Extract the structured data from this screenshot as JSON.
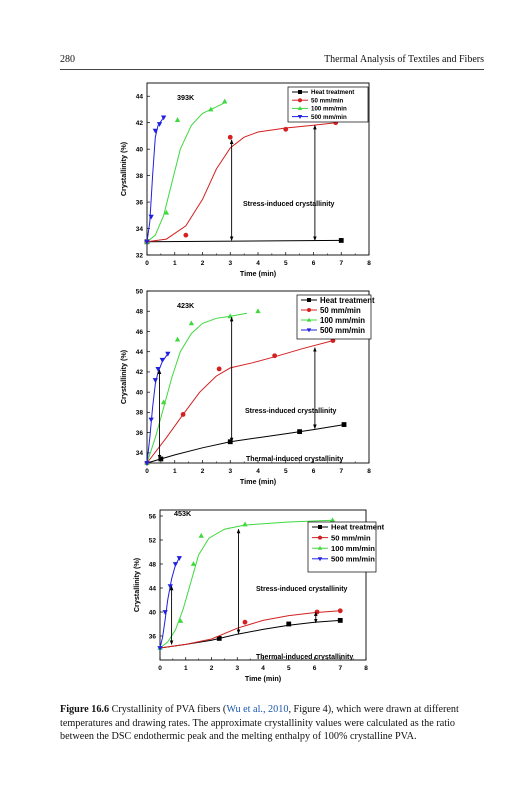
{
  "page": {
    "number": "280",
    "running_title": "Thermal Analysis of Textiles and Fibers"
  },
  "caption": {
    "label": "Figure 16.6",
    "before": "Crystallinity of PVA fibers (",
    "citation": "Wu et al., 2010",
    "after": ", Figure 4), which were drawn at different temperatures and drawing rates. The approximate crystallinity values were calculated as the ratio between the DSC endothermic peak and the melting enthalpy of 100% crystalline PVA."
  },
  "colors": {
    "heat_treatment": "#000000",
    "rate_50": "#d42020",
    "rate_100": "#3fd83f",
    "rate_500": "#1f1fe0"
  },
  "chart_data": [
    {
      "type": "line",
      "title": "393K",
      "xlabel": "Time (min)",
      "ylabel": "Crystallinity (%)",
      "xlim": [
        0,
        8
      ],
      "ylim": [
        32,
        45
      ],
      "xticks": [
        0,
        1,
        2,
        3,
        4,
        5,
        6,
        7,
        8
      ],
      "yticks": [
        32,
        34,
        36,
        38,
        40,
        42,
        44
      ],
      "legend_position": "top-right",
      "annotations": [
        "Stress-induced crystallinity"
      ],
      "series": [
        {
          "name": "Heat treatment",
          "marker": "square",
          "color": "#000000",
          "points": [
            [
              0,
              33
            ],
            [
              7,
              33.1
            ]
          ],
          "curve": [
            [
              0,
              33
            ],
            [
              7,
              33.1
            ]
          ]
        },
        {
          "name": "50 mm/min",
          "marker": "circle",
          "color": "#d42020",
          "points": [
            [
              0,
              33
            ],
            [
              1.4,
              33.5
            ],
            [
              3,
              40.9
            ],
            [
              5,
              41.5
            ],
            [
              6.8,
              42
            ]
          ],
          "curve": [
            [
              0,
              33
            ],
            [
              0.7,
              33.2
            ],
            [
              1.4,
              34.2
            ],
            [
              2,
              36.2
            ],
            [
              2.5,
              38.5
            ],
            [
              3,
              40.1
            ],
            [
              3.5,
              40.9
            ],
            [
              4,
              41.3
            ],
            [
              5,
              41.6
            ],
            [
              6,
              41.8
            ],
            [
              6.8,
              42
            ]
          ]
        },
        {
          "name": "100 mm/min",
          "marker": "triangle-up",
          "color": "#3fd83f",
          "points": [
            [
              0,
              33
            ],
            [
              0.7,
              35.2
            ],
            [
              1.1,
              42.2
            ],
            [
              2.3,
              43
            ],
            [
              2.8,
              43.6
            ]
          ],
          "curve": [
            [
              0,
              33
            ],
            [
              0.3,
              33.5
            ],
            [
              0.6,
              35
            ],
            [
              0.9,
              37.5
            ],
            [
              1.2,
              40
            ],
            [
              1.6,
              41.8
            ],
            [
              2,
              42.7
            ],
            [
              2.5,
              43.2
            ],
            [
              2.8,
              43.5
            ]
          ]
        },
        {
          "name": "500 mm/min",
          "marker": "triangle-down",
          "color": "#1f1fe0",
          "points": [
            [
              0,
              33
            ],
            [
              0.15,
              34.9
            ],
            [
              0.3,
              41.4
            ],
            [
              0.45,
              41.9
            ],
            [
              0.6,
              42.4
            ]
          ],
          "curve": [
            [
              0,
              33
            ],
            [
              0.1,
              34.5
            ],
            [
              0.2,
              38
            ],
            [
              0.3,
              40.9
            ],
            [
              0.4,
              41.8
            ],
            [
              0.5,
              42.1
            ],
            [
              0.6,
              42.4
            ]
          ]
        }
      ],
      "arrows": [
        {
          "x": 3.05,
          "y_from": 33.1,
          "y_to": 40.7
        },
        {
          "x": 6.05,
          "y_from": 33.1,
          "y_to": 41.8
        }
      ]
    },
    {
      "type": "line",
      "title": "423K",
      "xlabel": "Time (min)",
      "ylabel": "Crystallinity (%)",
      "xlim": [
        0,
        8
      ],
      "ylim": [
        33,
        50
      ],
      "xticks": [
        0,
        1,
        2,
        3,
        4,
        5,
        6,
        7,
        8
      ],
      "yticks": [
        34,
        36,
        38,
        40,
        42,
        44,
        46,
        48,
        50
      ],
      "legend_position": "top-right",
      "annotations": [
        "Stress-induced crystallinity",
        "Thermal-induced crystallinity"
      ],
      "series": [
        {
          "name": "Heat treatment",
          "marker": "square",
          "color": "#000000",
          "points": [
            [
              0.5,
              33.4
            ],
            [
              3,
              35.1
            ],
            [
              5.5,
              36.1
            ],
            [
              7.1,
              36.8
            ]
          ],
          "curve": [
            [
              0,
              33
            ],
            [
              1,
              33.8
            ],
            [
              2,
              34.5
            ],
            [
              3,
              35.1
            ],
            [
              4,
              35.5
            ],
            [
              5,
              35.9
            ],
            [
              6,
              36.3
            ],
            [
              7.1,
              36.8
            ]
          ]
        },
        {
          "name": "50 mm/min",
          "marker": "circle",
          "color": "#d42020",
          "points": [
            [
              0,
              33
            ],
            [
              1.3,
              37.8
            ],
            [
              2.6,
              42.3
            ],
            [
              4.6,
              43.6
            ],
            [
              6.7,
              45.1
            ]
          ],
          "curve": [
            [
              0,
              33
            ],
            [
              0.7,
              35.5
            ],
            [
              1.3,
              37.8
            ],
            [
              1.9,
              40
            ],
            [
              2.5,
              41.6
            ],
            [
              3,
              42.4
            ],
            [
              3.8,
              42.9
            ],
            [
              4.6,
              43.5
            ],
            [
              5.6,
              44.3
            ],
            [
              6.7,
              45.1
            ]
          ]
        },
        {
          "name": "100 mm/min",
          "marker": "triangle-up",
          "color": "#3fd83f",
          "points": [
            [
              0,
              33
            ],
            [
              0.6,
              39
            ],
            [
              1.1,
              45.2
            ],
            [
              1.6,
              46.8
            ],
            [
              3,
              47.5
            ],
            [
              4,
              48
            ]
          ],
          "curve": [
            [
              0,
              33
            ],
            [
              0.3,
              35.5
            ],
            [
              0.6,
              38.5
            ],
            [
              0.9,
              41.5
            ],
            [
              1.2,
              44
            ],
            [
              1.6,
              45.8
            ],
            [
              2,
              46.8
            ],
            [
              2.5,
              47.3
            ],
            [
              3,
              47.5
            ],
            [
              3.6,
              47.8
            ]
          ]
        },
        {
          "name": "500 mm/min",
          "marker": "triangle-down",
          "color": "#1f1fe0",
          "points": [
            [
              0,
              33
            ],
            [
              0.15,
              37.3
            ],
            [
              0.3,
              41.2
            ],
            [
              0.4,
              42.3
            ],
            [
              0.55,
              43.2
            ],
            [
              0.75,
              43.8
            ]
          ],
          "curve": [
            [
              0,
              33
            ],
            [
              0.1,
              35.5
            ],
            [
              0.2,
              38.5
            ],
            [
              0.3,
              40.8
            ],
            [
              0.4,
              42
            ],
            [
              0.55,
              43
            ],
            [
              0.75,
              43.8
            ]
          ]
        }
      ],
      "arrows": [
        {
          "x": 3.05,
          "y_from": 35.1,
          "y_to": 47.4
        },
        {
          "x": 6.05,
          "y_from": 36.4,
          "y_to": 44.4
        },
        {
          "x": 0.45,
          "y_from": 33.4,
          "y_to": 42.2
        }
      ]
    },
    {
      "type": "line",
      "title": "453K",
      "xlabel": "Time (min)",
      "ylabel": "Crystallinity (%)",
      "xlim": [
        0,
        8
      ],
      "ylim": [
        32,
        57
      ],
      "xticks": [
        0,
        1,
        2,
        3,
        4,
        5,
        6,
        7,
        8
      ],
      "yticks": [
        36,
        40,
        44,
        48,
        52,
        56
      ],
      "legend_position": "right",
      "annotations": [
        "Stress-induced crystallinity",
        "Thermal-induced crystallinity"
      ],
      "series": [
        {
          "name": "Heat treatment",
          "marker": "square",
          "color": "#000000",
          "points": [
            [
              2.3,
              35.6
            ],
            [
              5,
              38
            ],
            [
              7,
              38.6
            ]
          ],
          "curve": [
            [
              0,
              34
            ],
            [
              1,
              34.6
            ],
            [
              2,
              35.3
            ],
            [
              3,
              36.3
            ],
            [
              4,
              37.1
            ],
            [
              5,
              37.8
            ],
            [
              6,
              38.3
            ],
            [
              7,
              38.6
            ]
          ]
        },
        {
          "name": "50 mm/min",
          "marker": "circle",
          "color": "#d42020",
          "points": [
            [
              3.3,
              38.3
            ],
            [
              6.1,
              40
            ],
            [
              7,
              40.2
            ]
          ],
          "curve": [
            [
              0,
              34
            ],
            [
              1,
              34.6
            ],
            [
              2,
              35.5
            ],
            [
              3,
              37.3
            ],
            [
              4,
              38.6
            ],
            [
              5,
              39.4
            ],
            [
              6,
              39.9
            ],
            [
              7,
              40.2
            ]
          ]
        },
        {
          "name": "100 mm/min",
          "marker": "triangle-up",
          "color": "#3fd83f",
          "points": [
            [
              0,
              34
            ],
            [
              0.8,
              38.5
            ],
            [
              1.3,
              48
            ],
            [
              1.6,
              52.7
            ],
            [
              3.3,
              54.6
            ],
            [
              6.7,
              55.3
            ]
          ],
          "curve": [
            [
              0,
              34
            ],
            [
              0.3,
              35
            ],
            [
              0.6,
              37
            ],
            [
              0.9,
              40.5
            ],
            [
              1.2,
              45
            ],
            [
              1.5,
              49.5
            ],
            [
              1.9,
              52.3
            ],
            [
              2.5,
              53.8
            ],
            [
              3.3,
              54.5
            ],
            [
              5,
              55
            ],
            [
              6.7,
              55.3
            ]
          ]
        },
        {
          "name": "500 mm/min",
          "marker": "triangle-down",
          "color": "#1f1fe0",
          "points": [
            [
              0,
              34
            ],
            [
              0.2,
              40
            ],
            [
              0.4,
              44.3
            ],
            [
              0.6,
              48
            ],
            [
              0.75,
              49
            ]
          ],
          "curve": [
            [
              0,
              34
            ],
            [
              0.1,
              35.8
            ],
            [
              0.2,
              38.8
            ],
            [
              0.3,
              42
            ],
            [
              0.45,
              45.5
            ],
            [
              0.6,
              47.8
            ],
            [
              0.75,
              49
            ]
          ]
        }
      ],
      "arrows": [
        {
          "x": 3.05,
          "y_from": 36.4,
          "y_to": 53.8
        },
        {
          "x": 6.05,
          "y_from": 38.2,
          "y_to": 40
        },
        {
          "x": 0.45,
          "y_from": 34.6,
          "y_to": 44.3
        }
      ]
    }
  ]
}
